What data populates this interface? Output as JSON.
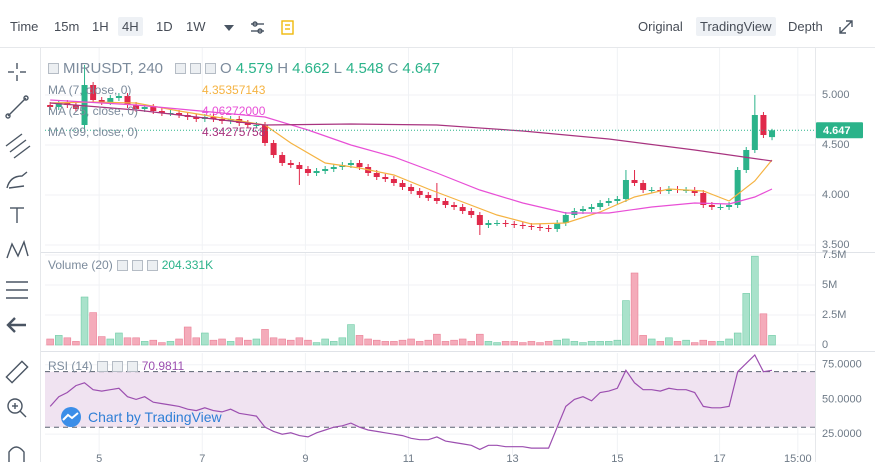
{
  "toolbar": {
    "intervals": [
      "Time",
      "15m",
      "1H",
      "4H",
      "1D",
      "1W"
    ],
    "views": [
      "Original",
      "TradingView",
      "Depth"
    ]
  },
  "watermark": "Chart by TradingView",
  "chart_data": [
    {
      "type": "candlestick",
      "title": "MIRUSDT, 240",
      "ohlc_labels": [
        "O",
        "H",
        "L",
        "C"
      ],
      "ohlc_values": [
        "4.579",
        "4.662",
        "4.548",
        "4.647"
      ],
      "last_price_label": "4.647",
      "up_color": "#2bb38a",
      "down_color": "#e0294a",
      "grid": true,
      "open": [
        4.9,
        4.88,
        4.92,
        4.9,
        4.7,
        5.1,
        4.95,
        4.93,
        4.97,
        4.99,
        4.9,
        4.86,
        4.88,
        4.84,
        4.82,
        4.82,
        4.8,
        4.78,
        4.76,
        4.78,
        4.76,
        4.74,
        4.76,
        4.72,
        4.7,
        4.7,
        4.52,
        4.4,
        4.32,
        4.3,
        4.26,
        4.22,
        4.24,
        4.26,
        4.28,
        4.3,
        4.32,
        4.28,
        4.22,
        4.18,
        4.16,
        4.12,
        4.08,
        4.04,
        4.0,
        3.97,
        3.94,
        3.9,
        3.88,
        3.84,
        3.8,
        3.7,
        3.72,
        3.72,
        3.71,
        3.7,
        3.69,
        3.68,
        3.67,
        3.66,
        3.72,
        3.8,
        3.84,
        3.86,
        3.88,
        3.92,
        3.94,
        3.96,
        4.15,
        4.12,
        4.05,
        4.05,
        4.04,
        4.06,
        4.05,
        4.05,
        4.02,
        3.9,
        3.88,
        3.88,
        3.9,
        4.25,
        4.45,
        4.8,
        4.579
      ],
      "high": [
        4.93,
        4.95,
        4.95,
        4.93,
        5.3,
        5.13,
        4.98,
        5.0,
        5.02,
        5.02,
        4.93,
        4.91,
        4.91,
        4.87,
        4.85,
        4.85,
        4.83,
        4.81,
        4.81,
        4.81,
        4.79,
        4.79,
        4.79,
        4.75,
        4.73,
        4.73,
        4.55,
        4.43,
        4.35,
        4.33,
        4.29,
        4.27,
        4.29,
        4.31,
        4.33,
        4.35,
        4.35,
        4.31,
        4.25,
        4.21,
        4.19,
        4.15,
        4.11,
        4.07,
        4.03,
        4.12,
        3.97,
        3.93,
        3.91,
        3.87,
        3.83,
        3.75,
        3.75,
        3.75,
        3.74,
        3.73,
        3.72,
        3.71,
        3.7,
        3.75,
        3.83,
        3.87,
        3.89,
        3.91,
        3.95,
        3.97,
        3.99,
        4.25,
        4.25,
        4.15,
        4.08,
        4.08,
        4.09,
        4.09,
        4.08,
        4.08,
        4.05,
        3.93,
        3.91,
        3.93,
        4.28,
        4.48,
        5.0,
        4.83,
        4.662
      ],
      "low": [
        4.85,
        4.85,
        4.87,
        4.83,
        4.65,
        4.92,
        4.9,
        4.9,
        4.94,
        4.87,
        4.83,
        4.83,
        4.81,
        4.79,
        4.79,
        4.77,
        4.75,
        4.73,
        4.73,
        4.73,
        4.71,
        4.71,
        4.69,
        4.67,
        4.67,
        4.49,
        4.37,
        4.29,
        4.27,
        4.1,
        4.19,
        4.19,
        4.21,
        4.23,
        4.25,
        4.27,
        4.25,
        4.19,
        4.15,
        4.13,
        4.09,
        4.05,
        4.01,
        3.97,
        3.94,
        3.91,
        3.87,
        3.85,
        3.81,
        3.77,
        3.6,
        3.67,
        3.69,
        3.68,
        3.67,
        3.66,
        3.65,
        3.64,
        3.63,
        3.63,
        3.69,
        3.77,
        3.81,
        3.83,
        3.85,
        3.89,
        3.91,
        3.93,
        4.09,
        4.02,
        4.02,
        4.01,
        4.01,
        4.02,
        4.02,
        3.99,
        3.87,
        3.85,
        3.85,
        3.85,
        3.87,
        4.22,
        4.42,
        4.57,
        4.548
      ],
      "close": [
        4.88,
        4.92,
        4.9,
        4.86,
        5.1,
        4.95,
        4.93,
        4.97,
        4.99,
        4.9,
        4.86,
        4.88,
        4.84,
        4.82,
        4.82,
        4.8,
        4.78,
        4.76,
        4.78,
        4.76,
        4.74,
        4.76,
        4.72,
        4.7,
        4.7,
        4.52,
        4.4,
        4.32,
        4.3,
        4.26,
        4.22,
        4.24,
        4.26,
        4.28,
        4.3,
        4.32,
        4.28,
        4.22,
        4.18,
        4.16,
        4.12,
        4.08,
        4.04,
        4.0,
        3.97,
        3.94,
        3.9,
        3.88,
        3.84,
        3.8,
        3.7,
        3.72,
        3.72,
        3.71,
        3.7,
        3.69,
        3.68,
        3.67,
        3.66,
        3.72,
        3.8,
        3.84,
        3.86,
        3.88,
        3.92,
        3.94,
        3.96,
        4.15,
        4.12,
        4.05,
        4.05,
        4.04,
        4.06,
        4.05,
        4.05,
        4.02,
        3.9,
        3.88,
        3.88,
        3.9,
        4.25,
        4.45,
        4.8,
        4.6,
        4.647
      ],
      "series": [
        {
          "name": "MA (7, close, 0)",
          "color": "#f5b342",
          "value_label": "4.35357143",
          "x": [
            0,
            5,
            10,
            15,
            20,
            25,
            28,
            32,
            36,
            40,
            44,
            48,
            52,
            56,
            60,
            64,
            68,
            72,
            76,
            79,
            82,
            84
          ],
          "values": [
            4.92,
            4.93,
            4.92,
            4.84,
            4.77,
            4.7,
            4.52,
            4.32,
            4.27,
            4.2,
            4.06,
            3.93,
            3.8,
            3.71,
            3.72,
            3.83,
            3.98,
            4.06,
            4.04,
            3.94,
            4.14,
            4.35
          ]
        },
        {
          "name": "MA (25, close, 0)",
          "color": "#e84fd6",
          "value_label": "4.06272000",
          "x": [
            0,
            10,
            20,
            25,
            30,
            35,
            40,
            45,
            50,
            55,
            60,
            65,
            70,
            75,
            79,
            82,
            84
          ],
          "values": [
            4.95,
            4.9,
            4.82,
            4.78,
            4.65,
            4.5,
            4.38,
            4.22,
            4.05,
            3.92,
            3.82,
            3.82,
            3.88,
            3.92,
            3.91,
            3.98,
            4.06
          ]
        },
        {
          "name": "MA (99, close, 0)",
          "color": "#a8337f",
          "value_label": "4.34275758",
          "x": [
            0,
            10,
            20,
            25,
            35,
            45,
            55,
            65,
            75,
            84
          ],
          "values": [
            4.92,
            4.85,
            4.75,
            4.7,
            4.71,
            4.7,
            4.64,
            4.56,
            4.45,
            4.34
          ]
        }
      ],
      "ylim": [
        3.45,
        5.45
      ],
      "yticks": [
        {
          "value": 3.5,
          "label": "3.500"
        },
        {
          "value": 4,
          "label": "4.000"
        },
        {
          "value": 4.5,
          "label": "4.500"
        },
        {
          "value": 5,
          "label": "5.000"
        }
      ]
    },
    {
      "type": "volume",
      "title": "Volume (20)",
      "value_label": "204.331K",
      "up_color": "#a9e2cb",
      "down_color": "#f4abba",
      "grid": true,
      "values": [
        0.5,
        0.8,
        0.6,
        0.3,
        4.0,
        2.7,
        0.7,
        0.5,
        1.0,
        0.6,
        0.6,
        0.3,
        0.4,
        0.2,
        0.3,
        0.5,
        1.5,
        0.6,
        1.0,
        0.4,
        0.5,
        0.3,
        0.6,
        0.4,
        0.5,
        1.3,
        0.6,
        0.5,
        0.4,
        0.6,
        0.4,
        0.2,
        0.5,
        0.3,
        0.6,
        1.7,
        0.8,
        0.5,
        0.4,
        0.3,
        0.3,
        0.4,
        0.5,
        0.3,
        0.4,
        0.9,
        0.3,
        0.4,
        0.5,
        0.3,
        0.9,
        0.3,
        0.2,
        0.3,
        0.3,
        0.2,
        0.3,
        0.2,
        0.3,
        0.4,
        0.5,
        0.3,
        0.2,
        0.3,
        0.3,
        0.3,
        0.4,
        3.7,
        6.0,
        0.8,
        0.5,
        0.3,
        0.6,
        0.3,
        0.4,
        0.2,
        0.4,
        0.3,
        0.3,
        0.5,
        1.0,
        4.3,
        7.4,
        2.6,
        0.8
      ],
      "ylim": [
        0,
        7.5
      ],
      "yticks": [
        0,
        {
          "value": 2.5,
          "label": "2.5M"
        },
        {
          "value": 5,
          "label": "5M"
        },
        {
          "value": 7.5,
          "label": "7.5M"
        }
      ]
    },
    {
      "type": "line",
      "title": "RSI (14)",
      "value_label": "70.9811",
      "color": "#9c4fb0",
      "band": [
        30,
        70
      ],
      "band_color": "#f0e3f1",
      "grid": true,
      "values": [
        45,
        52,
        55,
        60,
        62,
        57,
        56,
        57,
        58,
        52,
        50,
        52,
        48,
        47,
        46,
        45,
        43,
        42,
        44,
        42,
        41,
        43,
        40,
        39,
        38,
        30,
        27,
        25,
        26,
        24,
        23,
        26,
        28,
        30,
        31,
        33,
        30,
        28,
        27,
        26,
        25,
        24,
        22,
        21,
        21,
        23,
        20,
        19,
        18,
        17,
        14,
        17,
        17,
        16,
        16,
        16,
        15,
        15,
        15,
        30,
        45,
        50,
        52,
        49,
        55,
        56,
        58,
        71,
        62,
        57,
        57,
        56,
        58,
        57,
        57,
        55,
        45,
        44,
        44,
        45,
        70,
        76,
        82,
        70,
        70.9811
      ],
      "ylim": [
        10,
        82
      ],
      "yticks": [
        {
          "value": 25,
          "label": "25.0000"
        },
        {
          "value": 50,
          "label": "50.0000"
        },
        {
          "value": 75,
          "label": "75.0000"
        }
      ],
      "xlim": [
        -0.6,
        89
      ],
      "xticks": [
        {
          "value": 5.7,
          "label": "5"
        },
        {
          "value": 17.7,
          "label": "7"
        },
        {
          "value": 29.7,
          "label": "9"
        },
        {
          "value": 41.7,
          "label": "11"
        },
        {
          "value": 53.8,
          "label": "13"
        },
        {
          "value": 66.0,
          "label": "15"
        },
        {
          "value": 77.9,
          "label": "17"
        },
        {
          "value": 87.0,
          "label": "15:00"
        }
      ]
    }
  ]
}
